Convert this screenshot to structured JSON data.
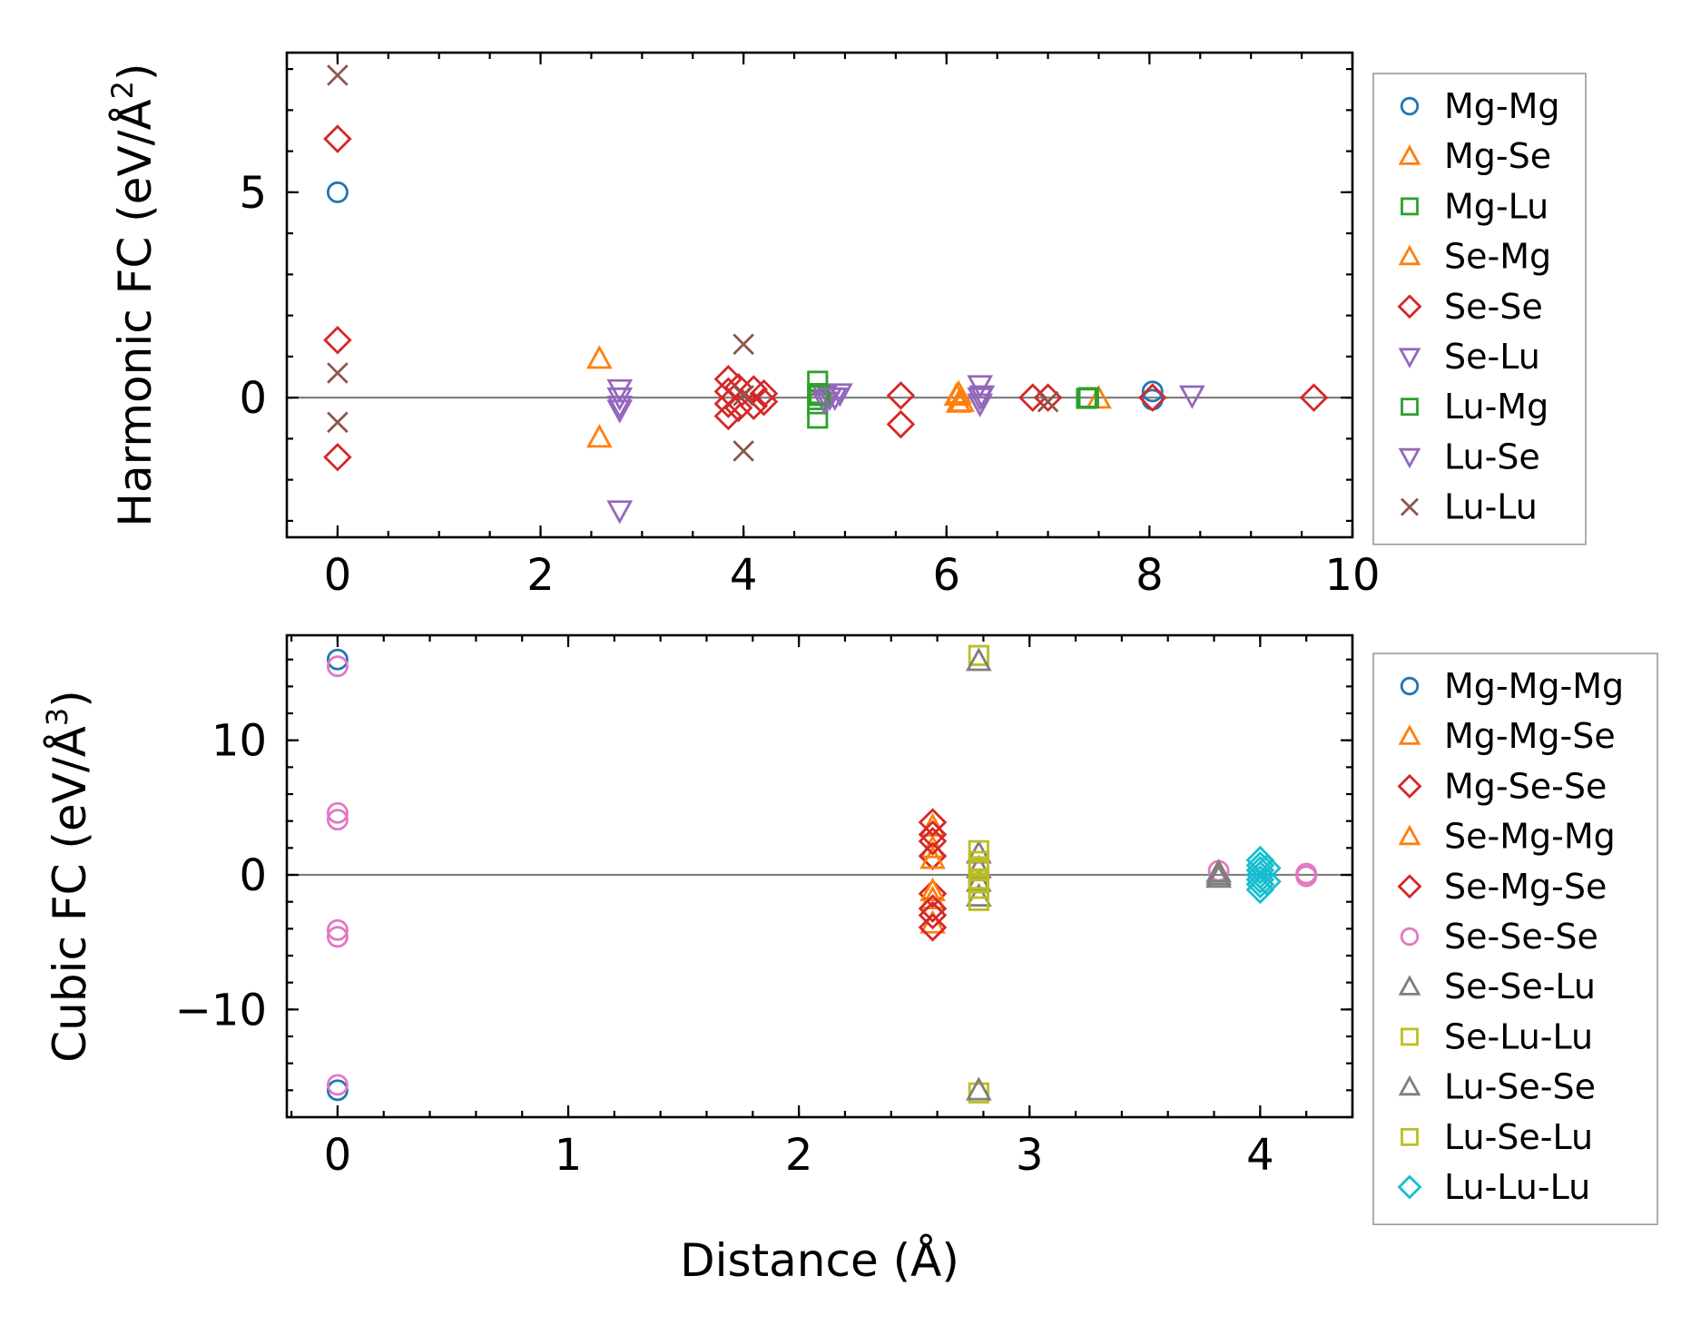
{
  "chart_data": [
    {
      "type": "scatter",
      "panel": "top",
      "ylabel_main": "Harmonic FC (eV/Å",
      "ylabel_sup": "2",
      "ylabel_close": ")",
      "xlabel": "",
      "xlim": [
        -0.5,
        10
      ],
      "ylim": [
        -3.4,
        8.4
      ],
      "xticks": [
        0,
        2,
        4,
        6,
        8,
        10
      ],
      "xtick_labels": [
        "0",
        "2",
        "4",
        "6",
        "8",
        "10"
      ],
      "yticks": [
        0,
        5
      ],
      "ytick_labels": [
        "0",
        "5"
      ],
      "x_minor_step": 0.5,
      "y_minor_step": 1,
      "reference_line_y": 0,
      "series": [
        {
          "name": "Mg-Mg",
          "marker": "circle",
          "color": "#1f77b4",
          "points": [
            [
              0,
              5.0
            ],
            [
              8.03,
              0.15
            ],
            [
              8.03,
              -0.05
            ]
          ]
        },
        {
          "name": "Mg-Se",
          "marker": "triangle-up",
          "color": "#ff7f0e",
          "points": [
            [
              2.58,
              0.95
            ],
            [
              2.58,
              -0.97
            ],
            [
              6.12,
              0.1
            ],
            [
              6.12,
              -0.12
            ],
            [
              7.5,
              -0.02
            ]
          ]
        },
        {
          "name": "Mg-Lu",
          "marker": "square",
          "color": "#2ca02c",
          "points": [
            [
              4.73,
              0.4
            ],
            [
              4.73,
              0.1
            ],
            [
              4.73,
              -0.15
            ],
            [
              4.73,
              -0.5
            ],
            [
              7.38,
              -0.02
            ]
          ]
        },
        {
          "name": "Se-Mg",
          "marker": "triangle-up",
          "color": "#ff7f0e",
          "points": [
            [
              6.1,
              0.05
            ],
            [
              6.15,
              -0.1
            ]
          ]
        },
        {
          "name": "Se-Se",
          "marker": "diamond",
          "color": "#d62728",
          "points": [
            [
              0,
              6.3
            ],
            [
              0,
              1.4
            ],
            [
              0,
              -1.45
            ],
            [
              3.85,
              0.45
            ],
            [
              3.85,
              0.15
            ],
            [
              3.85,
              -0.15
            ],
            [
              3.85,
              -0.45
            ],
            [
              3.95,
              0.25
            ],
            [
              3.95,
              -0.25
            ],
            [
              4.1,
              0.2
            ],
            [
              4.1,
              -0.2
            ],
            [
              4.2,
              0.1
            ],
            [
              4.2,
              -0.1
            ],
            [
              5.55,
              0.05
            ],
            [
              5.55,
              -0.65
            ],
            [
              6.85,
              0.0
            ],
            [
              7.0,
              0.0
            ],
            [
              8.03,
              0.0
            ],
            [
              9.62,
              0.0
            ]
          ]
        },
        {
          "name": "Se-Lu",
          "marker": "triangle-down",
          "color": "#9467bd",
          "points": [
            [
              2.78,
              0.2
            ],
            [
              2.78,
              0.0
            ],
            [
              2.78,
              -0.3
            ],
            [
              2.78,
              -2.75
            ],
            [
              4.8,
              0.05
            ],
            [
              4.8,
              -0.1
            ],
            [
              4.9,
              0.0
            ],
            [
              4.95,
              0.1
            ],
            [
              6.33,
              0.3
            ],
            [
              6.33,
              0.0
            ],
            [
              6.33,
              -0.15
            ],
            [
              8.42,
              0.05
            ]
          ]
        },
        {
          "name": "Lu-Mg",
          "marker": "square",
          "color": "#2ca02c",
          "points": [
            [
              4.75,
              0.05
            ],
            [
              7.4,
              0.0
            ]
          ]
        },
        {
          "name": "Lu-Se",
          "marker": "triangle-down",
          "color": "#9467bd",
          "points": [
            [
              2.78,
              -0.2
            ],
            [
              4.85,
              0.0
            ],
            [
              6.35,
              0.05
            ]
          ]
        },
        {
          "name": "Lu-Lu",
          "marker": "x",
          "color": "#8c564b",
          "points": [
            [
              0,
              7.85
            ],
            [
              0,
              0.6
            ],
            [
              0,
              -0.6
            ],
            [
              4.0,
              1.3
            ],
            [
              4.0,
              0.05
            ],
            [
              4.0,
              -1.3
            ],
            [
              7.0,
              -0.1
            ]
          ]
        }
      ]
    },
    {
      "type": "scatter",
      "panel": "bottom",
      "ylabel_main": "Cubic FC (eV/Å",
      "ylabel_sup": "3",
      "ylabel_close": ")",
      "xlabel": "Distance (Å)",
      "xlim": [
        -0.22,
        4.4
      ],
      "ylim": [
        -18,
        17.8
      ],
      "xticks": [
        0,
        1,
        2,
        3,
        4
      ],
      "xtick_labels": [
        "0",
        "1",
        "2",
        "3",
        "4"
      ],
      "yticks": [
        -10,
        0,
        10
      ],
      "ytick_labels": [
        "−10",
        "0",
        "10"
      ],
      "x_minor_step": 0.2,
      "y_minor_step": 2,
      "reference_line_y": 0,
      "series": [
        {
          "name": "Mg-Mg-Mg",
          "marker": "circle",
          "color": "#1f77b4",
          "points": [
            [
              0,
              16.0
            ],
            [
              0,
              -16.0
            ]
          ]
        },
        {
          "name": "Mg-Mg-Se",
          "marker": "triangle-up",
          "color": "#ff7f0e",
          "points": [
            [
              2.58,
              3.6
            ],
            [
              2.58,
              2.0
            ],
            [
              2.58,
              -1.8
            ],
            [
              2.58,
              -3.6
            ]
          ]
        },
        {
          "name": "Mg-Se-Se",
          "marker": "diamond",
          "color": "#d62728",
          "points": [
            [
              2.58,
              3.9
            ],
            [
              2.58,
              3.0
            ],
            [
              2.58,
              1.4
            ],
            [
              2.58,
              -1.4
            ],
            [
              2.58,
              -3.0
            ],
            [
              2.58,
              -3.9
            ]
          ]
        },
        {
          "name": "Se-Mg-Mg",
          "marker": "triangle-up",
          "color": "#ff7f0e",
          "points": [
            [
              2.58,
              1.2
            ],
            [
              2.58,
              -1.2
            ]
          ]
        },
        {
          "name": "Se-Mg-Se",
          "marker": "diamond",
          "color": "#d62728",
          "points": [
            [
              2.58,
              2.5
            ],
            [
              2.58,
              -2.5
            ]
          ]
        },
        {
          "name": "Se-Se-Se",
          "marker": "circle",
          "color": "#e377c2",
          "points": [
            [
              0,
              15.5
            ],
            [
              0,
              4.6
            ],
            [
              0,
              4.1
            ],
            [
              0,
              -4.1
            ],
            [
              0,
              -4.6
            ],
            [
              0,
              -15.6
            ],
            [
              3.82,
              0.3
            ],
            [
              4.2,
              0.1
            ],
            [
              4.2,
              -0.1
            ]
          ]
        },
        {
          "name": "Se-Se-Lu",
          "marker": "triangle-up",
          "color": "#7f7f7f",
          "points": [
            [
              2.78,
              1.6
            ],
            [
              2.78,
              0.5
            ],
            [
              2.78,
              -0.5
            ],
            [
              2.78,
              -1.6
            ],
            [
              3.82,
              0.2
            ],
            [
              3.82,
              -0.2
            ]
          ]
        },
        {
          "name": "Se-Lu-Lu",
          "marker": "square",
          "color": "#bcbd22",
          "points": [
            [
              2.78,
              16.3
            ],
            [
              2.78,
              1.8
            ],
            [
              2.78,
              1.0
            ],
            [
              2.78,
              0.3
            ],
            [
              2.78,
              -0.3
            ],
            [
              2.78,
              -1.0
            ],
            [
              2.78,
              -1.9
            ],
            [
              2.78,
              -16.2
            ]
          ]
        },
        {
          "name": "Lu-Se-Se",
          "marker": "triangle-up",
          "color": "#7f7f7f",
          "points": [
            [
              2.78,
              15.9
            ],
            [
              2.78,
              -16.0
            ],
            [
              3.82,
              0.0
            ]
          ]
        },
        {
          "name": "Lu-Se-Lu",
          "marker": "square",
          "color": "#bcbd22",
          "points": [
            [
              2.78,
              0.6
            ],
            [
              2.78,
              -0.6
            ]
          ]
        },
        {
          "name": "Lu-Lu-Lu",
          "marker": "diamond",
          "color": "#17becf",
          "points": [
            [
              4.0,
              1.1
            ],
            [
              4.0,
              0.7
            ],
            [
              4.0,
              0.35
            ],
            [
              4.0,
              0.0
            ],
            [
              4.0,
              -0.35
            ],
            [
              4.0,
              -0.7
            ],
            [
              4.0,
              -1.1
            ],
            [
              4.03,
              0.5
            ],
            [
              4.03,
              -0.5
            ]
          ]
        }
      ]
    }
  ]
}
